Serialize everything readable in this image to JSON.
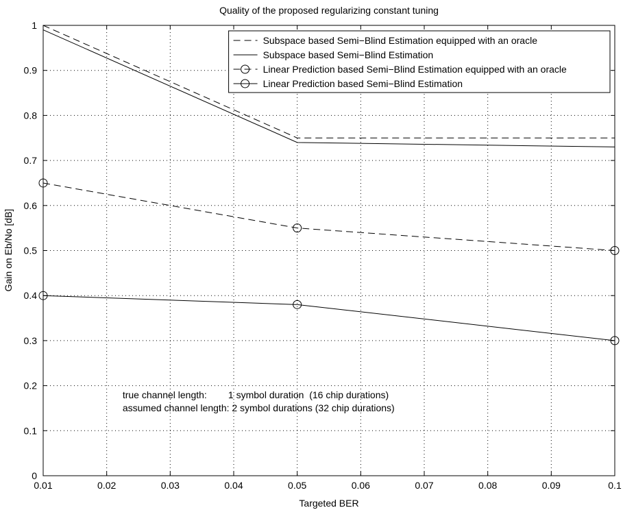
{
  "chart_data": {
    "type": "line",
    "title": "Quality of the proposed regularizing constant tuning",
    "xlabel": "Targeted BER",
    "ylabel": "Gain on Eb/No [dB]",
    "xlim": [
      0.01,
      0.1
    ],
    "ylim": [
      0,
      1
    ],
    "xticks": [
      0.01,
      0.02,
      0.03,
      0.04,
      0.05,
      0.06,
      0.07,
      0.08,
      0.09,
      0.1
    ],
    "xtick_labels": [
      "0.01",
      "0.02",
      "0.03",
      "0.04",
      "0.05",
      "0.06",
      "0.07",
      "0.08",
      "0.09",
      "0.1"
    ],
    "yticks": [
      0,
      0.1,
      0.2,
      0.3,
      0.4,
      0.5,
      0.6,
      0.7,
      0.8,
      0.9,
      1
    ],
    "ytick_labels": [
      "0",
      "0.1",
      "0.2",
      "0.3",
      "0.4",
      "0.5",
      "0.6",
      "0.7",
      "0.8",
      "0.9",
      "1"
    ],
    "grid": true,
    "legend_position": "top-right",
    "series": [
      {
        "name": "Subspace based Semi−Blind Estimation equipped with an oracle",
        "x": [
          0.01,
          0.05,
          0.1
        ],
        "y": [
          1.0,
          0.75,
          0.75
        ],
        "dash": "dashed",
        "marker": "none"
      },
      {
        "name": "Subspace based Semi−Blind Estimation",
        "x": [
          0.01,
          0.05,
          0.1
        ],
        "y": [
          0.99,
          0.74,
          0.73
        ],
        "dash": "solid",
        "marker": "none"
      },
      {
        "name": "Linear Prediction based Semi−Blind Estimation equipped with an oracle",
        "x": [
          0.01,
          0.05,
          0.1
        ],
        "y": [
          0.65,
          0.55,
          0.5
        ],
        "dash": "dashed",
        "marker": "circle"
      },
      {
        "name": "Linear Prediction based Semi−Blind Estimation",
        "x": [
          0.01,
          0.05,
          0.1
        ],
        "y": [
          0.4,
          0.38,
          0.3
        ],
        "dash": "solid",
        "marker": "circle"
      }
    ],
    "annotations": [
      "true channel length:        1 symbol duration  (16 chip durations)",
      "assumed channel length: 2 symbol durations (32 chip durations)"
    ]
  }
}
